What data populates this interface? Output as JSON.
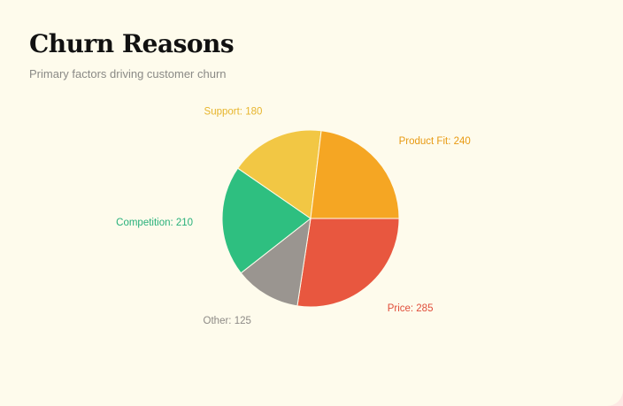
{
  "title": "Churn Reasons",
  "subtitle": "Primary factors driving customer churn",
  "chart_data": {
    "type": "pie",
    "categories": [
      "Price",
      "Other",
      "Competition",
      "Support",
      "Product Fit"
    ],
    "values": [
      285,
      125,
      210,
      180,
      240
    ],
    "labels": [
      "Price: 285",
      "Other: 125",
      "Competition: 210",
      "Support: 180",
      "Product Fit: 240"
    ],
    "colors": [
      "#e8573f",
      "#9a9590",
      "#2ebf80",
      "#f2c744",
      "#f5a623"
    ],
    "label_colors": [
      "#e04e3a",
      "#8d8a86",
      "#27b07a",
      "#e7b52d",
      "#e89a12"
    ],
    "start_angle_deg": 0,
    "direction": "clockwise"
  }
}
